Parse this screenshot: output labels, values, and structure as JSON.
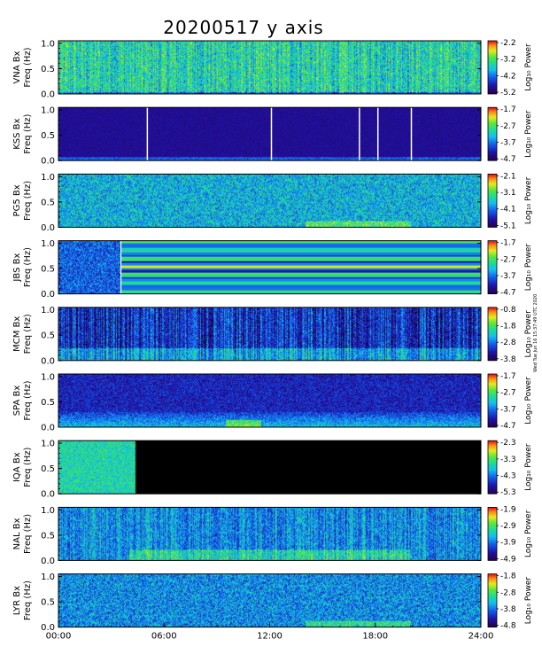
{
  "chart_data": {
    "type": "heatmap",
    "title": "20200517  y axis",
    "x_ticks": [
      "00:00",
      "06:00",
      "12:00",
      "18:00",
      "24:00"
    ],
    "x_range_hours": [
      0,
      24
    ],
    "y_ticks": [
      "0.0",
      "0.5",
      "1.0"
    ],
    "y_range_hz": [
      0,
      1.05
    ],
    "colorbar_label": "Log₁₀ Power",
    "side_stamp": "Wed Tue Jun 16 15:37:49 UTC 2020",
    "panels": [
      {
        "station": "VNA Bx",
        "freq_label": "Freq (Hz)",
        "cbar_ticks": [
          "-2.2",
          "-3.2",
          "-4.2",
          "-5.2"
        ],
        "pattern": "high_noise",
        "level": 0.62
      },
      {
        "station": "KSS Bx",
        "freq_label": "Freq (Hz)",
        "cbar_ticks": [
          "-1.7",
          "-2.7",
          "-3.7",
          "-4.7"
        ],
        "pattern": "quiet_dark",
        "level": 0.08,
        "gaps_hours": [
          5.05,
          12.1,
          17.1,
          18.15,
          20.05
        ]
      },
      {
        "station": "PG5 Bx",
        "freq_label": "Freq (Hz)",
        "cbar_ticks": [
          "-2.1",
          "-3.1",
          "-4.1",
          "-5.1"
        ],
        "pattern": "medium_noise",
        "level": 0.45
      },
      {
        "station": "JBS Bx",
        "freq_label": "Freq (Hz)",
        "cbar_ticks": [
          "-1.7",
          "-2.7",
          "-3.7",
          "-4.7"
        ],
        "pattern": "stripes_after",
        "level": 0.35,
        "stripe_start_hours": 3.55
      },
      {
        "station": "MCM Bx",
        "freq_label": "Freq (Hz)",
        "cbar_ticks": [
          "-0.8",
          "-1.8",
          "-2.8",
          "-3.8"
        ],
        "pattern": "vertical_bursts",
        "level": 0.28
      },
      {
        "station": "SPA Bx",
        "freq_label": "Freq (Hz)",
        "cbar_ticks": [
          "-1.7",
          "-2.7",
          "-3.7",
          "-4.7"
        ],
        "pattern": "low_band",
        "level": 0.2
      },
      {
        "station": "IQA Bx",
        "freq_label": "Freq (Hz)",
        "cbar_ticks": [
          "-2.3",
          "-3.3",
          "-4.3",
          "-5.3"
        ],
        "pattern": "data_then_black",
        "level": 0.55,
        "data_end_hours": 4.35
      },
      {
        "station": "NAL Bx",
        "freq_label": "Freq (Hz)",
        "cbar_ticks": [
          "-1.9",
          "-2.9",
          "-3.9",
          "-4.9"
        ],
        "pattern": "medium_noise_warm",
        "level": 0.4
      },
      {
        "station": "LYR Bx",
        "freq_label": "Freq (Hz)",
        "cbar_ticks": [
          "-1.8",
          "-2.8",
          "-3.8",
          "-4.8"
        ],
        "pattern": "medium_noise",
        "level": 0.38
      }
    ]
  }
}
